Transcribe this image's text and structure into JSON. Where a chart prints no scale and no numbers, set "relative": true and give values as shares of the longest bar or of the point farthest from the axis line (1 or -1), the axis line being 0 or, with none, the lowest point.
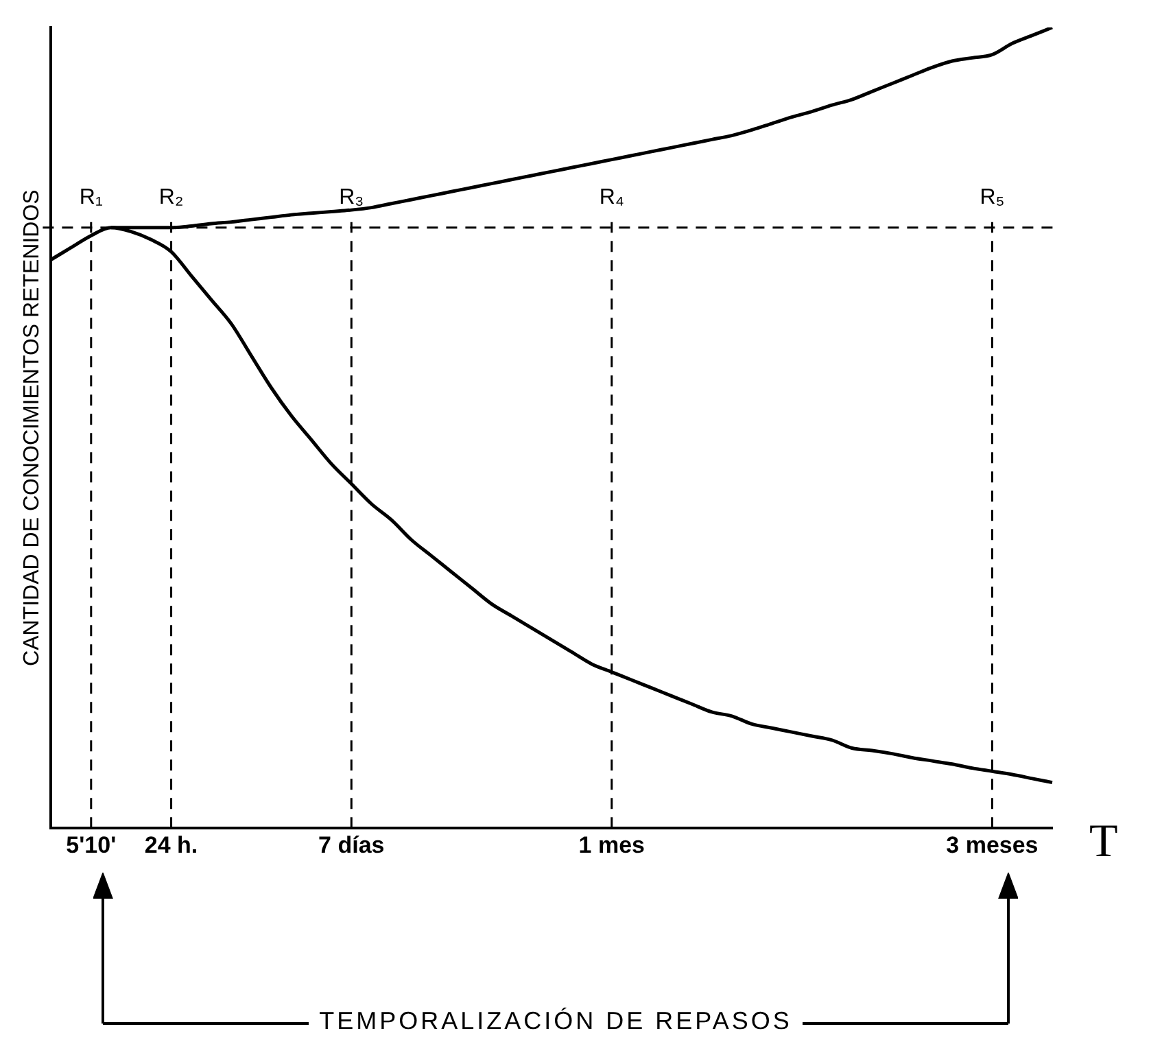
{
  "chart_data": {
    "type": "line",
    "relative": true,
    "ylabel": "CANTIDAD DE CONOCIMIENTOS RETENIDOS",
    "xlabel": "T",
    "categories": [
      null,
      null,
      "5'10'",
      null,
      null,
      null,
      "24 h.",
      null,
      null,
      null,
      null,
      null,
      null,
      null,
      null,
      "7 días",
      null,
      null,
      null,
      null,
      null,
      null,
      null,
      null,
      null,
      null,
      null,
      null,
      "1 mes",
      null,
      null,
      null,
      null,
      null,
      null,
      null,
      null,
      null,
      null,
      null,
      null,
      null,
      null,
      null,
      null,
      null,
      null,
      "3 meses",
      null,
      null,
      null
    ],
    "series": [
      {
        "color": "#000000",
        "values": [
          0.71,
          0.725,
          0.74,
          0.75,
          0.745,
          0.735,
          0.72,
          0.69,
          0.66,
          0.63,
          0.59,
          0.55,
          0.515,
          0.485,
          0.455,
          0.43,
          0.405,
          0.385,
          0.36,
          0.34,
          0.32,
          0.3,
          0.28,
          0.265,
          0.25,
          0.235,
          0.22,
          0.205,
          0.195,
          0.185,
          0.175,
          0.165,
          0.155,
          0.145,
          0.14,
          0.13,
          0.125,
          0.12,
          0.115,
          0.11,
          0.1,
          0.097,
          0.093,
          0.088,
          0.084,
          0.08,
          0.075,
          0.071,
          0.067,
          0.062,
          0.057
        ]
      },
      {
        "color": "#000000",
        "values": [
          null,
          null,
          null,
          0.75,
          0.75,
          0.75,
          0.75,
          0.752,
          0.755,
          0.757,
          0.76,
          0.763,
          0.766,
          0.768,
          0.77,
          0.772,
          0.775,
          0.78,
          0.785,
          0.79,
          0.795,
          0.8,
          0.805,
          0.81,
          0.815,
          0.82,
          0.825,
          0.83,
          0.835,
          0.84,
          0.845,
          0.85,
          0.855,
          0.86,
          0.865,
          0.872,
          0.88,
          0.888,
          0.895,
          0.903,
          0.91,
          0.92,
          0.93,
          0.94,
          0.95,
          0.958,
          0.962,
          0.966,
          0.98,
          0.99,
          1
        ]
      }
    ],
    "ref_lines": [
      {
        "axis": "y",
        "value": 0.75,
        "line_style": "dashed",
        "color": "#000000"
      },
      {
        "axis": "x",
        "value": "5'10'",
        "label": "R₁",
        "line_style": "dashed",
        "color": "#000000"
      },
      {
        "axis": "x",
        "value": "24 h.",
        "label": "R₂",
        "line_style": "dashed",
        "color": "#000000"
      },
      {
        "axis": "x",
        "value": "7 días",
        "label": "R₃",
        "line_style": "dashed",
        "color": "#000000"
      },
      {
        "axis": "x",
        "value": "1 mes",
        "label": "R₄",
        "line_style": "dashed",
        "color": "#000000"
      },
      {
        "axis": "x",
        "value": "3 meses",
        "label": "R₅",
        "line_style": "dashed",
        "color": "#000000"
      }
    ],
    "annotations": [
      "TEMPORALIZACIÓN DE REPASOS"
    ],
    "grid": false,
    "legend": false,
    "marker": "none",
    "line_style": "solid"
  }
}
